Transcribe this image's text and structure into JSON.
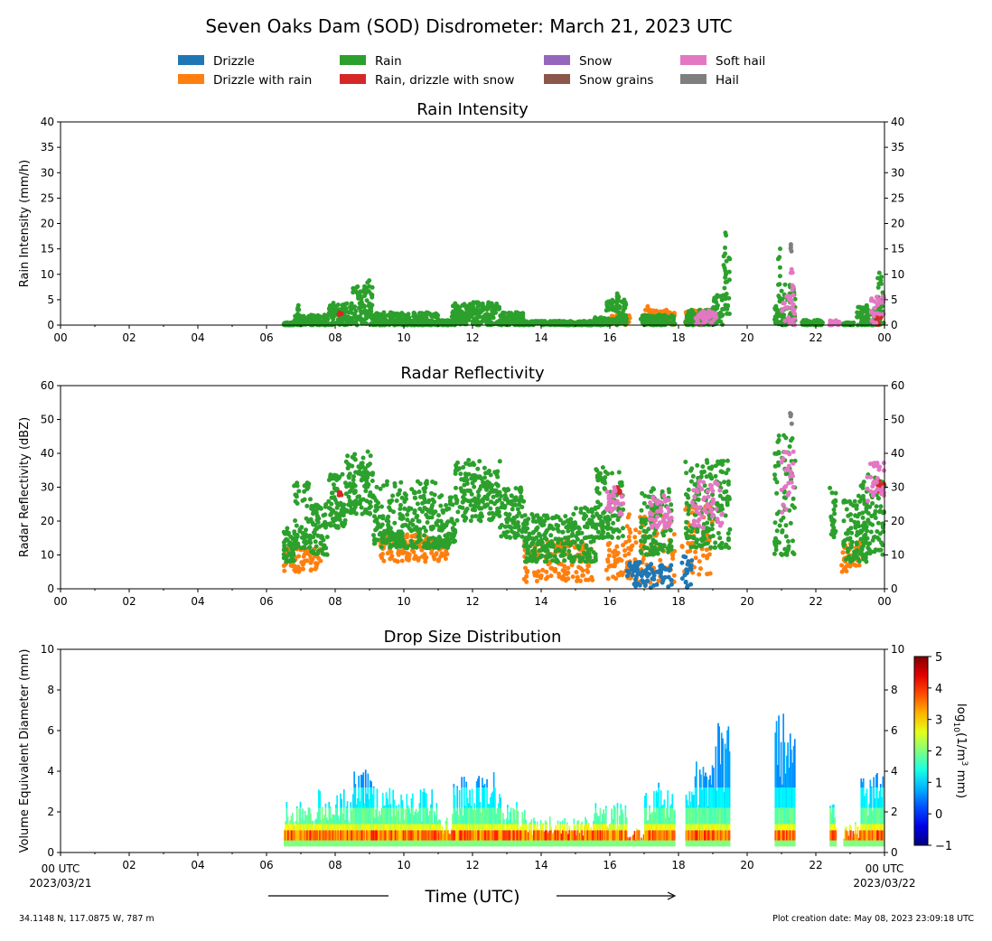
{
  "title": "Seven Oaks Dam (SOD) Disdrometer: March 21, 2023 UTC",
  "legend": {
    "items": [
      {
        "label": "Drizzle",
        "color": "#1f77b4"
      },
      {
        "label": "Drizzle with rain",
        "color": "#ff7f0e"
      },
      {
        "label": "Rain",
        "color": "#2ca02c"
      },
      {
        "label": "Rain, drizzle with snow",
        "color": "#d62728"
      },
      {
        "label": "Snow",
        "color": "#9467bd"
      },
      {
        "label": "Snow grains",
        "color": "#8c564b"
      },
      {
        "label": "Soft hail",
        "color": "#e377c2"
      },
      {
        "label": "Hail",
        "color": "#7f7f7f"
      }
    ]
  },
  "footer": {
    "xlabel": "Time (UTC)",
    "location": "34.1148 N, 117.0875 W, 787 m",
    "created": "Plot creation date: May 08, 2023 23:09:18 UTC",
    "start_label": "00 UTC",
    "start_date": "2023/03/21",
    "end_label": "00 UTC",
    "end_date": "2023/03/22"
  },
  "colorbar": {
    "label_base": "log",
    "label_sub": "10",
    "label_mid": "(1/m",
    "label_sup": "3",
    "label_end": " mm)",
    "ticks": [
      "5",
      "4",
      "3",
      "2",
      "1",
      "0",
      "−1"
    ],
    "range": [
      -1,
      5
    ],
    "colormap": "jet"
  },
  "chart_data": [
    {
      "type": "scatter",
      "title": "Rain Intensity",
      "ylabel": "Rain Intensity (mm/h)",
      "xlim": [
        0,
        24
      ],
      "ylim": [
        0,
        40
      ],
      "yticks": [
        "0",
        "5",
        "10",
        "15",
        "20",
        "25",
        "30",
        "35",
        "40"
      ],
      "xticks": [
        "00",
        "02",
        "04",
        "06",
        "08",
        "10",
        "12",
        "14",
        "16",
        "18",
        "20",
        "22",
        "00"
      ],
      "segments": [
        {
          "cls": 2,
          "start": 6.5,
          "end": 6.8,
          "lo": 0,
          "hi": 0.5
        },
        {
          "cls": 2,
          "start": 6.8,
          "end": 7.8,
          "lo": 0,
          "hi": 2
        },
        {
          "cls": 2,
          "start": 6.9,
          "end": 7.0,
          "lo": 0,
          "hi": 4.5
        },
        {
          "cls": 2,
          "start": 7.8,
          "end": 8.5,
          "lo": 0,
          "hi": 4.5
        },
        {
          "cls": 2,
          "start": 8.5,
          "end": 9.1,
          "lo": 0,
          "hi": 8
        },
        {
          "cls": 2,
          "start": 8.9,
          "end": 9.0,
          "lo": 2,
          "hi": 11
        },
        {
          "cls": 2,
          "start": 9.1,
          "end": 11.0,
          "lo": 0,
          "hi": 2.5
        },
        {
          "cls": 2,
          "start": 11.0,
          "end": 11.4,
          "lo": 0,
          "hi": 1
        },
        {
          "cls": 2,
          "start": 11.4,
          "end": 12.8,
          "lo": 0,
          "hi": 4.5
        },
        {
          "cls": 2,
          "start": 12.8,
          "end": 13.5,
          "lo": 0,
          "hi": 2.5
        },
        {
          "cls": 2,
          "start": 13.5,
          "end": 15.5,
          "lo": 0,
          "hi": 0.8
        },
        {
          "cls": 1,
          "start": 14.5,
          "end": 15.5,
          "lo": 0,
          "hi": 0.5
        },
        {
          "cls": 2,
          "start": 15.5,
          "end": 15.9,
          "lo": 0,
          "hi": 1.5
        },
        {
          "cls": 2,
          "start": 15.9,
          "end": 16.5,
          "lo": 0,
          "hi": 5
        },
        {
          "cls": 2,
          "start": 16.2,
          "end": 16.3,
          "lo": 1,
          "hi": 6.5
        },
        {
          "cls": 1,
          "start": 16.0,
          "end": 16.6,
          "lo": 0,
          "hi": 2
        },
        {
          "cls": 2,
          "start": 16.9,
          "end": 17.9,
          "lo": 0,
          "hi": 2
        },
        {
          "cls": 1,
          "start": 17.0,
          "end": 17.9,
          "lo": 0,
          "hi": 3
        },
        {
          "cls": 1,
          "start": 17.1,
          "end": 17.2,
          "lo": 1,
          "hi": 5
        },
        {
          "cls": 2,
          "start": 18.2,
          "end": 19.0,
          "lo": 0,
          "hi": 3
        },
        {
          "cls": 1,
          "start": 18.2,
          "end": 18.9,
          "lo": 0,
          "hi": 3
        },
        {
          "cls": 6,
          "start": 18.5,
          "end": 19.1,
          "lo": 0,
          "hi": 3
        },
        {
          "cls": 2,
          "start": 19.0,
          "end": 19.3,
          "lo": 0,
          "hi": 6
        },
        {
          "cls": 2,
          "start": 19.3,
          "end": 19.5,
          "lo": 2,
          "hi": 14
        },
        {
          "cls": 2,
          "start": 19.35,
          "end": 19.4,
          "lo": 10,
          "hi": 19.5
        },
        {
          "cls": 2,
          "start": 20.8,
          "end": 21.0,
          "lo": 0,
          "hi": 4
        },
        {
          "cls": 2,
          "start": 20.9,
          "end": 21.0,
          "lo": 4,
          "hi": 16.5
        },
        {
          "cls": 2,
          "start": 21.0,
          "end": 21.4,
          "lo": 0,
          "hi": 8
        },
        {
          "cls": 6,
          "start": 21.0,
          "end": 21.4,
          "lo": 0,
          "hi": 6
        },
        {
          "cls": 6,
          "start": 21.25,
          "end": 21.35,
          "lo": 4,
          "hi": 13
        },
        {
          "cls": 7,
          "start": 21.25,
          "end": 21.3,
          "lo": 14.5,
          "hi": 16
        },
        {
          "cls": 2,
          "start": 21.6,
          "end": 22.2,
          "lo": 0,
          "hi": 1
        },
        {
          "cls": 6,
          "start": 22.4,
          "end": 22.7,
          "lo": 0,
          "hi": 1
        },
        {
          "cls": 2,
          "start": 22.8,
          "end": 23.1,
          "lo": 0,
          "hi": 0.5
        },
        {
          "cls": 2,
          "start": 23.2,
          "end": 23.9,
          "lo": 0,
          "hi": 4
        },
        {
          "cls": 6,
          "start": 23.6,
          "end": 24.0,
          "lo": 0,
          "hi": 6
        },
        {
          "cls": 2,
          "start": 23.8,
          "end": 24.0,
          "lo": 0,
          "hi": 10.5
        },
        {
          "cls": 3,
          "start": 23.7,
          "end": 23.9,
          "lo": 0,
          "hi": 2
        },
        {
          "cls": 3,
          "start": 8.1,
          "end": 8.2,
          "lo": 2,
          "hi": 2.5
        }
      ]
    },
    {
      "type": "scatter",
      "title": "Radar Reflectivity",
      "ylabel": "Radar Reflectivity (dBZ)",
      "xlim": [
        0,
        24
      ],
      "ylim": [
        0,
        60
      ],
      "yticks": [
        "0",
        "10",
        "20",
        "30",
        "40",
        "50",
        "60"
      ],
      "xticks": [
        "00",
        "02",
        "04",
        "06",
        "08",
        "10",
        "12",
        "14",
        "16",
        "18",
        "20",
        "22",
        "00"
      ],
      "segments": [
        {
          "cls": 1,
          "start": 6.5,
          "end": 7.6,
          "lo": 5,
          "hi": 12
        },
        {
          "cls": 2,
          "start": 6.5,
          "end": 6.8,
          "lo": 8,
          "hi": 18
        },
        {
          "cls": 2,
          "start": 6.8,
          "end": 7.3,
          "lo": 12,
          "hi": 32
        },
        {
          "cls": 2,
          "start": 7.3,
          "end": 7.8,
          "lo": 10,
          "hi": 25
        },
        {
          "cls": 2,
          "start": 7.8,
          "end": 8.3,
          "lo": 18,
          "hi": 34
        },
        {
          "cls": 2,
          "start": 8.3,
          "end": 9.1,
          "lo": 22,
          "hi": 40
        },
        {
          "cls": 2,
          "start": 8.9,
          "end": 9.0,
          "lo": 30,
          "hi": 42
        },
        {
          "cls": 2,
          "start": 9.1,
          "end": 11.0,
          "lo": 12,
          "hi": 32
        },
        {
          "cls": 1,
          "start": 9.3,
          "end": 11.3,
          "lo": 8,
          "hi": 16
        },
        {
          "cls": 2,
          "start": 11.0,
          "end": 11.5,
          "lo": 12,
          "hi": 28
        },
        {
          "cls": 2,
          "start": 11.5,
          "end": 12.8,
          "lo": 20,
          "hi": 38
        },
        {
          "cls": 2,
          "start": 12.8,
          "end": 13.5,
          "lo": 15,
          "hi": 30
        },
        {
          "cls": 2,
          "start": 13.5,
          "end": 14.8,
          "lo": 8,
          "hi": 22
        },
        {
          "cls": 1,
          "start": 13.5,
          "end": 15.5,
          "lo": 2,
          "hi": 14
        },
        {
          "cls": 2,
          "start": 14.8,
          "end": 15.6,
          "lo": 8,
          "hi": 24
        },
        {
          "cls": 2,
          "start": 15.6,
          "end": 16.4,
          "lo": 15,
          "hi": 36
        },
        {
          "cls": 1,
          "start": 15.9,
          "end": 16.6,
          "lo": 3,
          "hi": 14
        },
        {
          "cls": 6,
          "start": 15.9,
          "end": 16.4,
          "lo": 22,
          "hi": 30
        },
        {
          "cls": 0,
          "start": 16.5,
          "end": 17.8,
          "lo": 0,
          "hi": 8
        },
        {
          "cls": 1,
          "start": 16.5,
          "end": 17.9,
          "lo": 1,
          "hi": 22
        },
        {
          "cls": 2,
          "start": 16.9,
          "end": 17.8,
          "lo": 10,
          "hi": 30
        },
        {
          "cls": 6,
          "start": 17.1,
          "end": 17.8,
          "lo": 18,
          "hi": 28
        },
        {
          "cls": 0,
          "start": 18.1,
          "end": 18.4,
          "lo": 0,
          "hi": 10
        },
        {
          "cls": 1,
          "start": 18.1,
          "end": 19.0,
          "lo": 3,
          "hi": 25
        },
        {
          "cls": 2,
          "start": 18.2,
          "end": 19.5,
          "lo": 12,
          "hi": 38
        },
        {
          "cls": 6,
          "start": 18.4,
          "end": 19.3,
          "lo": 18,
          "hi": 32
        },
        {
          "cls": 2,
          "start": 20.8,
          "end": 21.4,
          "lo": 10,
          "hi": 46
        },
        {
          "cls": 6,
          "start": 21.0,
          "end": 21.4,
          "lo": 22,
          "hi": 42
        },
        {
          "cls": 7,
          "start": 21.25,
          "end": 21.3,
          "lo": 48,
          "hi": 52
        },
        {
          "cls": 2,
          "start": 22.4,
          "end": 22.6,
          "lo": 15,
          "hi": 30
        },
        {
          "cls": 1,
          "start": 22.7,
          "end": 23.3,
          "lo": 5,
          "hi": 14
        },
        {
          "cls": 2,
          "start": 22.8,
          "end": 23.5,
          "lo": 8,
          "hi": 28
        },
        {
          "cls": 2,
          "start": 23.3,
          "end": 24.0,
          "lo": 10,
          "hi": 35
        },
        {
          "cls": 6,
          "start": 23.5,
          "end": 24.0,
          "lo": 25,
          "hi": 38
        },
        {
          "cls": 3,
          "start": 23.8,
          "end": 24.0,
          "lo": 28,
          "hi": 32
        },
        {
          "cls": 3,
          "start": 8.1,
          "end": 8.2,
          "lo": 27,
          "hi": 29
        },
        {
          "cls": 3,
          "start": 16.2,
          "end": 16.3,
          "lo": 28,
          "hi": 30
        }
      ]
    },
    {
      "type": "heatmap",
      "title": "Drop Size Distribution",
      "ylabel": "Volume Equivalent Diameter (mm)",
      "xlim": [
        0,
        24
      ],
      "ylim": [
        0,
        10
      ],
      "yticks": [
        "0",
        "2",
        "4",
        "6",
        "8",
        "10"
      ],
      "xticks": [
        "",
        "02",
        "04",
        "06",
        "08",
        "10",
        "12",
        "14",
        "16",
        "18",
        "20",
        "22",
        ""
      ],
      "value_range": [
        -1,
        5
      ],
      "segments": [
        {
          "start": 6.5,
          "end": 7.5,
          "top": 2.5
        },
        {
          "start": 7.5,
          "end": 8.5,
          "top": 3.2
        },
        {
          "start": 8.5,
          "end": 9.1,
          "top": 4.5
        },
        {
          "start": 9.1,
          "end": 11.0,
          "top": 3.2
        },
        {
          "start": 11.0,
          "end": 11.4,
          "top": 2.0
        },
        {
          "start": 11.4,
          "end": 12.8,
          "top": 4.0
        },
        {
          "start": 12.8,
          "end": 13.5,
          "top": 2.5
        },
        {
          "start": 13.5,
          "end": 15.5,
          "top": 1.8
        },
        {
          "start": 15.5,
          "end": 16.5,
          "top": 2.5
        },
        {
          "start": 16.5,
          "end": 17.0,
          "top": 1.2
        },
        {
          "start": 17.0,
          "end": 17.9,
          "top": 3.5
        },
        {
          "start": 18.2,
          "end": 19.0,
          "top": 4.5
        },
        {
          "start": 19.0,
          "end": 19.5,
          "top": 6.5
        },
        {
          "start": 20.8,
          "end": 21.4,
          "top": 7.0
        },
        {
          "start": 22.4,
          "end": 22.6,
          "top": 2.5
        },
        {
          "start": 22.8,
          "end": 23.3,
          "top": 1.5
        },
        {
          "start": 23.3,
          "end": 24.0,
          "top": 4.0
        }
      ]
    }
  ]
}
